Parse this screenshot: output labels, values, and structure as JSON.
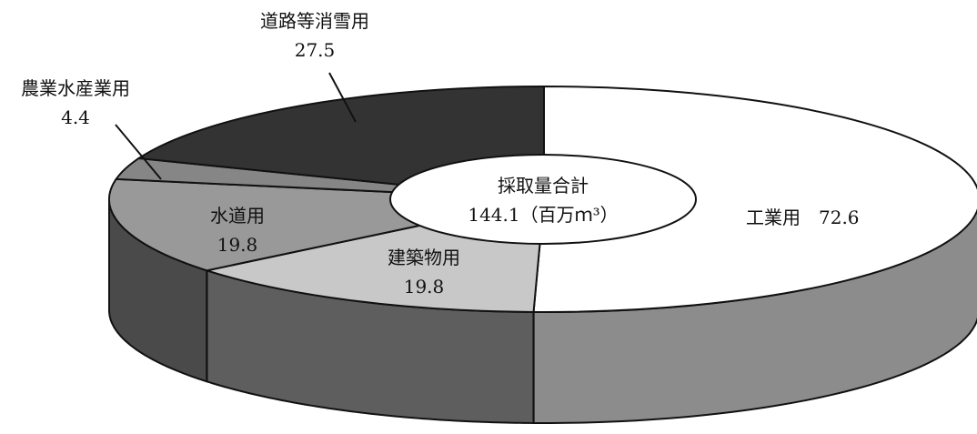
{
  "chart_data": {
    "type": "pie",
    "style": "3d",
    "total_label_line1": "採取量合計",
    "total_label_line2": "144.1（百万ｍ³）",
    "slices": [
      {
        "name": "工業用",
        "value": 72.6,
        "label": "工業用　72.6",
        "top_color": "#ffffff",
        "side_color": "#8c8c8c"
      },
      {
        "name": "建築物用",
        "value": 19.8,
        "label_line1": "建築物用",
        "label_line2": "19.8",
        "top_color": "#c8c8c8",
        "side_color": "#5e5e5e"
      },
      {
        "name": "水道用",
        "value": 19.8,
        "label_line1": "水道用",
        "label_line2": "19.8",
        "top_color": "#999999",
        "side_color": "#4a4a4a"
      },
      {
        "name": "農業水産業用",
        "value": 4.4,
        "label_line1": "農業水産業用",
        "label_line2": "4.4",
        "top_color": "#868686",
        "side_color": "#444444"
      },
      {
        "name": "道路等消雪用",
        "value": 27.5,
        "label_line1": "道路等消雪用",
        "label_line2": "27.5",
        "top_color": "#333333",
        "side_color": "#222222"
      }
    ]
  }
}
